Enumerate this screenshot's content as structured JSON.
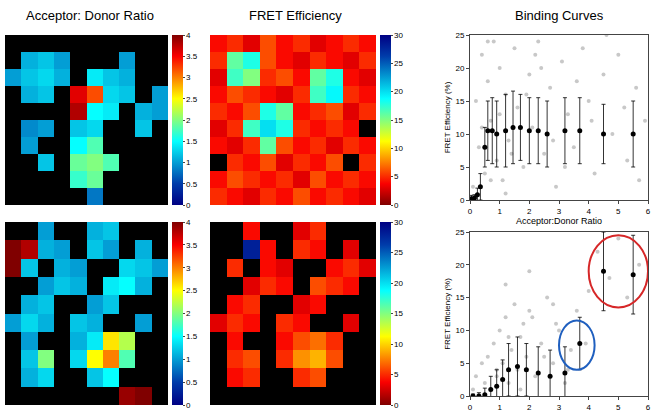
{
  "column_titles": [
    "Acceptor: Donor Ratio",
    "FRET Efficiency",
    "Binding Curves"
  ],
  "chart_data": [
    {
      "type": "heatmap",
      "color": "Jet",
      "zlim": [
        0,
        4
      ],
      "zticks": [
        0,
        0.5,
        1,
        1.5,
        2,
        2.5,
        3,
        3.5,
        4
      ],
      "z": [
        [
          null,
          null,
          null,
          null,
          null,
          null,
          null,
          null,
          null,
          null
        ],
        [
          null,
          1.1,
          1.2,
          1.0,
          null,
          null,
          null,
          1.0,
          null,
          null
        ],
        [
          1.0,
          1.2,
          1.3,
          1.1,
          null,
          1.4,
          1.2,
          1.1,
          null,
          null
        ],
        [
          null,
          1.1,
          1.2,
          null,
          3.6,
          3.2,
          1.3,
          1.2,
          null,
          1.0
        ],
        [
          null,
          null,
          null,
          null,
          3.8,
          1.5,
          1.4,
          null,
          1.1,
          1.0
        ],
        [
          null,
          0.9,
          1.0,
          null,
          1.2,
          1.3,
          null,
          null,
          1.2,
          null
        ],
        [
          null,
          1.0,
          null,
          null,
          1.5,
          1.8,
          null,
          null,
          null,
          null
        ],
        [
          null,
          null,
          1.2,
          null,
          1.9,
          2.0,
          1.8,
          null,
          null,
          null
        ],
        [
          null,
          null,
          null,
          null,
          1.7,
          1.9,
          null,
          null,
          null,
          null
        ],
        [
          null,
          null,
          null,
          null,
          null,
          0.8,
          null,
          null,
          null,
          null
        ]
      ]
    },
    {
      "type": "heatmap",
      "color": "Jet_r",
      "zlim": [
        0,
        30
      ],
      "zticks": [
        0,
        5,
        10,
        15,
        20,
        25,
        30
      ],
      "z": [
        [
          4,
          5,
          3,
          6,
          4,
          5,
          3,
          4,
          5,
          4
        ],
        [
          5,
          16,
          18,
          6,
          4,
          3,
          5,
          4,
          3,
          5
        ],
        [
          3,
          17,
          15,
          5,
          6,
          4,
          16,
          18,
          4,
          3
        ],
        [
          4,
          6,
          5,
          4,
          3,
          5,
          17,
          19,
          5,
          4
        ],
        [
          5,
          4,
          6,
          18,
          16,
          4,
          5,
          6,
          3,
          5
        ],
        [
          3,
          5,
          17,
          20,
          18,
          5,
          4,
          5,
          4,
          null
        ],
        [
          4,
          3,
          5,
          16,
          6,
          4,
          5,
          3,
          5,
          4
        ],
        [
          null,
          5,
          4,
          6,
          3,
          5,
          4,
          6,
          null,
          5
        ],
        [
          4,
          6,
          5,
          4,
          5,
          3,
          6,
          4,
          5,
          4
        ],
        [
          5,
          4,
          3,
          5,
          4,
          6,
          4,
          5,
          4,
          3
        ]
      ]
    },
    {
      "type": "scatter",
      "xlim": [
        0,
        6
      ],
      "ylim": [
        0,
        25
      ],
      "xticks": [
        0,
        1,
        2,
        3,
        4,
        5,
        6
      ],
      "yticks": [
        0,
        5,
        10,
        15,
        20,
        25
      ],
      "x_label": "Acceptor:Donor Ratio",
      "y_label": "FRET Efficiency (%)",
      "cloud": {
        "color": "#c8c8c8",
        "x": [
          0.1,
          0.2,
          0.3,
          0.4,
          0.5,
          0.6,
          0.7,
          0.8,
          0.9,
          1.0,
          1.1,
          1.2,
          1.3,
          1.5,
          1.6,
          1.8,
          2.0,
          2.1,
          2.3,
          2.5,
          2.7,
          2.9,
          3.1,
          3.3,
          3.5,
          3.8,
          4.0,
          4.2,
          4.5,
          4.8,
          5.0,
          5.3,
          5.6,
          5.9,
          0.4,
          0.7,
          1.0,
          1.4,
          1.9,
          2.4,
          2.8,
          3.2,
          3.6,
          4.1,
          4.6,
          5.2,
          5.7,
          0.6,
          1.2,
          2.2
        ],
        "y": [
          2,
          15,
          8,
          22,
          4,
          18,
          12,
          24,
          6,
          20,
          3,
          16,
          9,
          23,
          14,
          5,
          19,
          11,
          24,
          7,
          17,
          2,
          21,
          13,
          8,
          23,
          15,
          4,
          19,
          10,
          22,
          6,
          17,
          12,
          11,
          3,
          13,
          7,
          16,
          20,
          9,
          5,
          18,
          12,
          25,
          14,
          3,
          24,
          1,
          22
        ]
      },
      "series": [
        {
          "color": "#000000",
          "x": [
            0.05,
            0.15,
            0.25,
            0.35,
            0.5,
            0.6,
            0.75,
            0.9,
            1.2,
            1.45,
            1.7,
            2.0,
            2.3,
            2.6,
            3.2,
            3.7,
            4.5,
            5.5
          ],
          "values": [
            0.2,
            0.3,
            0.8,
            2,
            8,
            10.5,
            10.5,
            10,
            10.5,
            11,
            11,
            10.5,
            10.5,
            10,
            10.5,
            10.5,
            10,
            10
          ],
          "error": [
            0.5,
            0.5,
            1,
            2,
            3,
            4.5,
            5,
            5,
            5.5,
            5.5,
            5,
            5,
            5,
            5,
            5,
            5,
            4.5,
            5
          ]
        }
      ]
    },
    {
      "type": "heatmap",
      "color": "Jet",
      "zlim": [
        0,
        4
      ],
      "zticks": [
        0,
        0.5,
        1,
        1.5,
        2,
        2.5,
        3,
        3.5,
        4
      ],
      "z": [
        [
          null,
          null,
          1.0,
          null,
          null,
          1.1,
          1.2,
          null,
          null,
          null
        ],
        [
          4.0,
          3.8,
          1.1,
          1.0,
          null,
          1.2,
          1.0,
          null,
          1.1,
          null
        ],
        [
          4.0,
          1.2,
          null,
          1.1,
          1.0,
          null,
          null,
          1.3,
          1.2,
          1.0
        ],
        [
          null,
          null,
          1.0,
          1.2,
          1.1,
          null,
          1.4,
          1.5,
          1.1,
          null
        ],
        [
          null,
          1.1,
          1.2,
          null,
          null,
          1.0,
          1.2,
          null,
          null,
          null
        ],
        [
          1.0,
          1.3,
          1.1,
          null,
          1.2,
          1.1,
          null,
          null,
          1.0,
          null
        ],
        [
          null,
          1.0,
          null,
          null,
          1.1,
          1.4,
          2.6,
          2.2,
          null,
          null
        ],
        [
          null,
          1.2,
          2.0,
          null,
          1.3,
          2.5,
          3.0,
          1.8,
          null,
          null
        ],
        [
          null,
          1.1,
          1.3,
          null,
          null,
          1.2,
          1.5,
          null,
          null,
          null
        ],
        [
          null,
          null,
          null,
          null,
          null,
          null,
          null,
          3.9,
          4.0,
          null
        ]
      ]
    },
    {
      "type": "heatmap",
      "color": "Jet_r",
      "zlim": [
        0,
        30
      ],
      "zticks": [
        0,
        5,
        10,
        15,
        20,
        25,
        30
      ],
      "z": [
        [
          null,
          null,
          4,
          null,
          null,
          3,
          5,
          null,
          null,
          null
        ],
        [
          null,
          null,
          28,
          4,
          null,
          5,
          4,
          null,
          3,
          null
        ],
        [
          null,
          5,
          null,
          4,
          3,
          null,
          null,
          4,
          5,
          3
        ],
        [
          null,
          null,
          3,
          5,
          4,
          null,
          6,
          5,
          4,
          null
        ],
        [
          null,
          4,
          5,
          null,
          null,
          3,
          4,
          null,
          null,
          null
        ],
        [
          3,
          5,
          4,
          null,
          5,
          4,
          null,
          null,
          3,
          null
        ],
        [
          null,
          4,
          null,
          null,
          4,
          6,
          7,
          5,
          null,
          null
        ],
        [
          null,
          5,
          6,
          null,
          5,
          8,
          9,
          6,
          null,
          null
        ],
        [
          null,
          4,
          5,
          null,
          null,
          5,
          6,
          null,
          null,
          null
        ],
        [
          null,
          null,
          null,
          null,
          null,
          null,
          null,
          null,
          null,
          null
        ]
      ]
    },
    {
      "type": "scatter",
      "xlim": [
        0,
        6
      ],
      "ylim": [
        0,
        25
      ],
      "xticks": [
        0,
        1,
        2,
        3,
        4,
        5,
        6
      ],
      "yticks": [
        0,
        5,
        10,
        15,
        20,
        25
      ],
      "y_label": "FRET Efficiency (%)",
      "cloud": {
        "color": "#c8c8c8",
        "x": [
          0.1,
          0.2,
          0.3,
          0.4,
          0.5,
          0.6,
          0.7,
          0.8,
          0.9,
          1.0,
          1.1,
          1.2,
          1.3,
          1.4,
          1.5,
          1.6,
          1.7,
          1.8,
          1.9,
          2.0,
          2.2,
          2.4,
          2.6,
          2.8,
          3.0,
          3.2,
          3.4,
          0.5,
          0.9,
          1.3,
          1.7,
          2.1,
          2.5,
          2.9,
          3.3,
          1.2,
          2.0,
          2.8,
          3.6,
          4.0,
          4.3,
          4.7,
          5.0,
          5.3,
          5.7,
          3.9
        ],
        "y": [
          1,
          3,
          0,
          5,
          2,
          6,
          1,
          8,
          3,
          10,
          5,
          12,
          2,
          7,
          14,
          4,
          9,
          11,
          6,
          13,
          3,
          8,
          15,
          5,
          10,
          2,
          7,
          0,
          4,
          9,
          1,
          12,
          6,
          11,
          4,
          17,
          19,
          14,
          13,
          16,
          22,
          18,
          24,
          15,
          20,
          8
        ]
      },
      "series": [
        {
          "color": "#000000",
          "x": [
            0.1,
            0.3,
            0.5,
            0.7,
            0.9,
            1.1,
            1.3,
            1.6,
            1.9,
            2.3,
            2.7,
            3.2,
            3.7,
            4.5,
            5.5
          ],
          "values": [
            0,
            0,
            0.2,
            1,
            1.5,
            2.5,
            4,
            4.5,
            4,
            3.5,
            3,
            3.5,
            8,
            19,
            18.5
          ],
          "error": [
            0.3,
            0.5,
            1,
            2,
            2.5,
            3,
            4,
            4.5,
            4,
            4,
            4,
            4,
            4,
            6,
            6
          ]
        }
      ],
      "highlights": [
        {
          "x": [
            4.0,
            6.0
          ],
          "y": [
            13.5,
            24.5
          ],
          "color": "#d62728"
        },
        {
          "x": [
            3.0,
            4.2
          ],
          "y": [
            4,
            11.5
          ],
          "color": "#1f5fbf"
        }
      ]
    }
  ]
}
